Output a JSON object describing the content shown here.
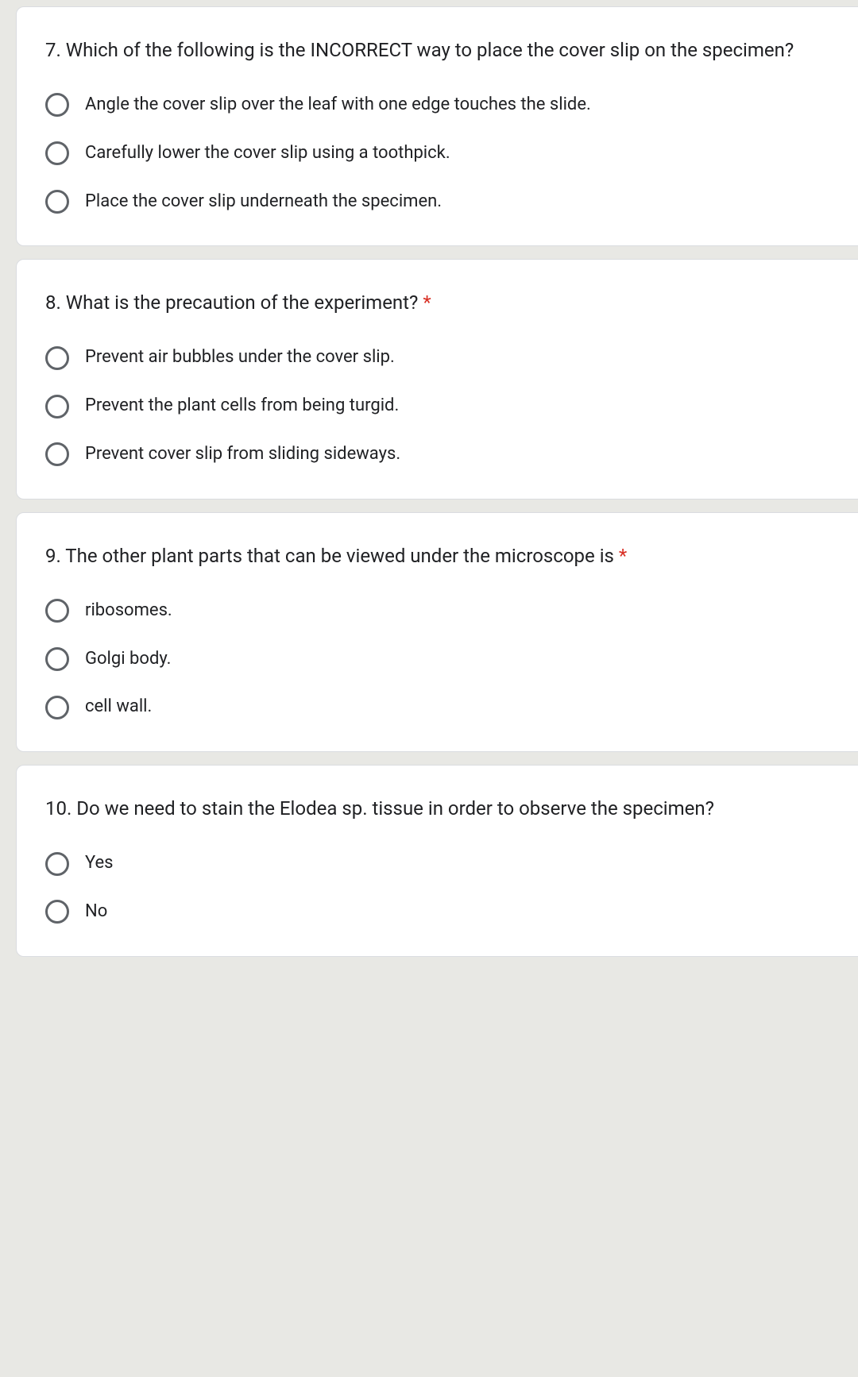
{
  "colors": {
    "page_bg": "#e8e8e4",
    "card_bg": "#ffffff",
    "card_border": "#dadce0",
    "text": "#202124",
    "radio_border": "#5f6368",
    "required": "#d93025"
  },
  "typography": {
    "question_fontsize": 24,
    "option_fontsize": 22,
    "font_family": "Roboto, Arial, sans-serif"
  },
  "questions": [
    {
      "text": "7. Which of the following is the INCORRECT way to place the cover slip on the specimen?",
      "required": false,
      "options": [
        "Angle the cover slip over the leaf with one edge touches the slide.",
        "Carefully lower the cover slip using a toothpick.",
        "Place the cover slip underneath the specimen."
      ]
    },
    {
      "text": "8. What is the precaution of the experiment?",
      "required": true,
      "options": [
        "Prevent air bubbles under the cover slip.",
        "Prevent the plant cells from being turgid.",
        "Prevent cover slip from sliding sideways."
      ]
    },
    {
      "text": "9. The other plant parts that can be viewed under the microscope is",
      "required": true,
      "options": [
        "ribosomes.",
        "Golgi body.",
        "cell wall."
      ]
    },
    {
      "text": "10. Do we need to stain the Elodea sp. tissue in order to observe the specimen?",
      "required": false,
      "options": [
        "Yes",
        "No"
      ]
    }
  ]
}
